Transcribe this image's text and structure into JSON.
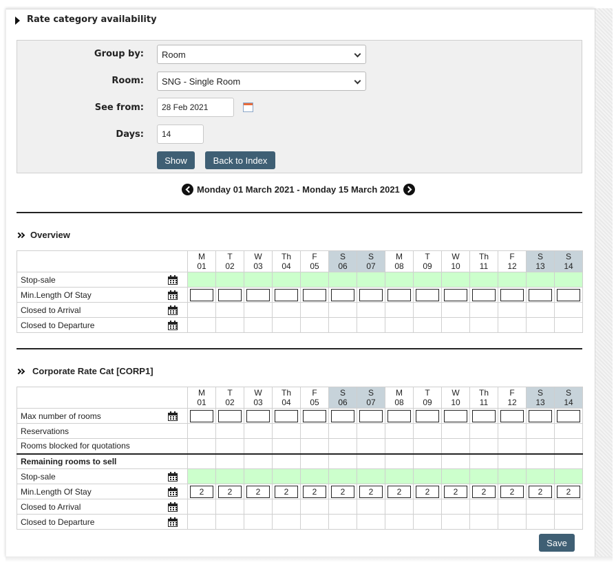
{
  "section_title": "Rate category availability",
  "filters": {
    "group_by_label": "Group by:",
    "group_by_value": "Room",
    "room_label": "Room:",
    "room_value": "SNG - Single Room",
    "see_from_label": "See from:",
    "see_from_value": "28 Feb 2021",
    "days_label": "Days:",
    "days_value": "14",
    "show_button": "Show",
    "back_button": "Back to Index"
  },
  "date_range": "Monday 01 March 2021 - Monday 15 March 2021",
  "days": [
    {
      "dow": "M",
      "date": "01",
      "weekend": false
    },
    {
      "dow": "T",
      "date": "02",
      "weekend": false
    },
    {
      "dow": "W",
      "date": "03",
      "weekend": false
    },
    {
      "dow": "Th",
      "date": "04",
      "weekend": false
    },
    {
      "dow": "F",
      "date": "05",
      "weekend": false
    },
    {
      "dow": "S",
      "date": "06",
      "weekend": true
    },
    {
      "dow": "S",
      "date": "07",
      "weekend": true
    },
    {
      "dow": "M",
      "date": "08",
      "weekend": false
    },
    {
      "dow": "T",
      "date": "09",
      "weekend": false
    },
    {
      "dow": "W",
      "date": "10",
      "weekend": false
    },
    {
      "dow": "Th",
      "date": "11",
      "weekend": false
    },
    {
      "dow": "F",
      "date": "12",
      "weekend": false
    },
    {
      "dow": "S",
      "date": "13",
      "weekend": true
    },
    {
      "dow": "S",
      "date": "14",
      "weekend": true
    }
  ],
  "overview": {
    "title": "Overview",
    "rows": [
      {
        "label": "Stop-sale",
        "icon": "calendar-icon",
        "kind": "green"
      },
      {
        "label": "Min.Length Of Stay",
        "icon": "calendar-icon",
        "kind": "input",
        "values": [
          "",
          "",
          "",
          "",
          "",
          "",
          "",
          "",
          "",
          "",
          "",
          "",
          "",
          ""
        ]
      },
      {
        "label": "Closed to Arrival",
        "icon": "calendar-icon",
        "kind": "empty"
      },
      {
        "label": "Closed to Departure",
        "icon": "calendar-icon",
        "kind": "empty"
      }
    ]
  },
  "corporate": {
    "title": "Corporate Rate Cat [CORP1]",
    "rows": [
      {
        "label": "Max number of rooms",
        "icon": "calendar-icon",
        "kind": "input",
        "values": [
          "",
          "",
          "",
          "",
          "",
          "",
          "",
          "",
          "",
          "",
          "",
          "",
          "",
          ""
        ]
      },
      {
        "label": "Reservations",
        "icon": "",
        "kind": "empty"
      },
      {
        "label": "Rooms blocked for quotations",
        "icon": "",
        "kind": "empty"
      },
      {
        "label": "Remaining rooms to sell",
        "icon": "",
        "kind": "empty",
        "bold": true
      },
      {
        "label": "Stop-sale",
        "icon": "calendar-icon",
        "kind": "green"
      },
      {
        "label": "Min.Length Of Stay",
        "icon": "calendar-icon",
        "kind": "input",
        "values": [
          "2",
          "2",
          "2",
          "2",
          "2",
          "2",
          "2",
          "2",
          "2",
          "2",
          "2",
          "2",
          "2",
          "2"
        ]
      },
      {
        "label": "Closed to Arrival",
        "icon": "calendar-icon",
        "kind": "empty"
      },
      {
        "label": "Closed to Departure",
        "icon": "calendar-icon",
        "kind": "empty"
      }
    ]
  },
  "save_button": "Save",
  "colors": {
    "button": "#3f5f74",
    "weekend_header": "#c7d3da",
    "stop_sale": "#ccffcc",
    "panel": "#f0f0f0"
  }
}
